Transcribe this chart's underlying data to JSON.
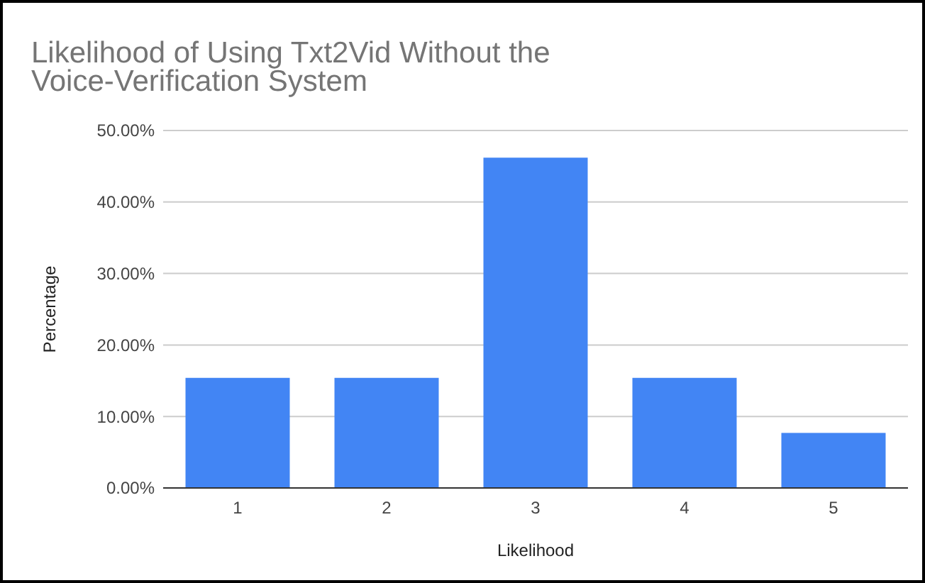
{
  "chart_data": {
    "type": "bar",
    "title": "Likelihood of Using Txt2Vid Without the Voice-Verification System",
    "xlabel": "Likelihood",
    "ylabel": "Percentage",
    "categories": [
      "1",
      "2",
      "3",
      "4",
      "5"
    ],
    "values": [
      15.4,
      15.4,
      46.2,
      15.4,
      7.7
    ],
    "color": "#4285f4",
    "ylim": [
      0,
      50
    ],
    "yticks": [
      {
        "value": 0,
        "label": "0.00%"
      },
      {
        "value": 10,
        "label": "10.00%"
      },
      {
        "value": 20,
        "label": "20.00%"
      },
      {
        "value": 30,
        "label": "30.00%"
      },
      {
        "value": 40,
        "label": "40.00%"
      },
      {
        "value": 50,
        "label": "50.00%"
      }
    ],
    "grid": "y"
  }
}
